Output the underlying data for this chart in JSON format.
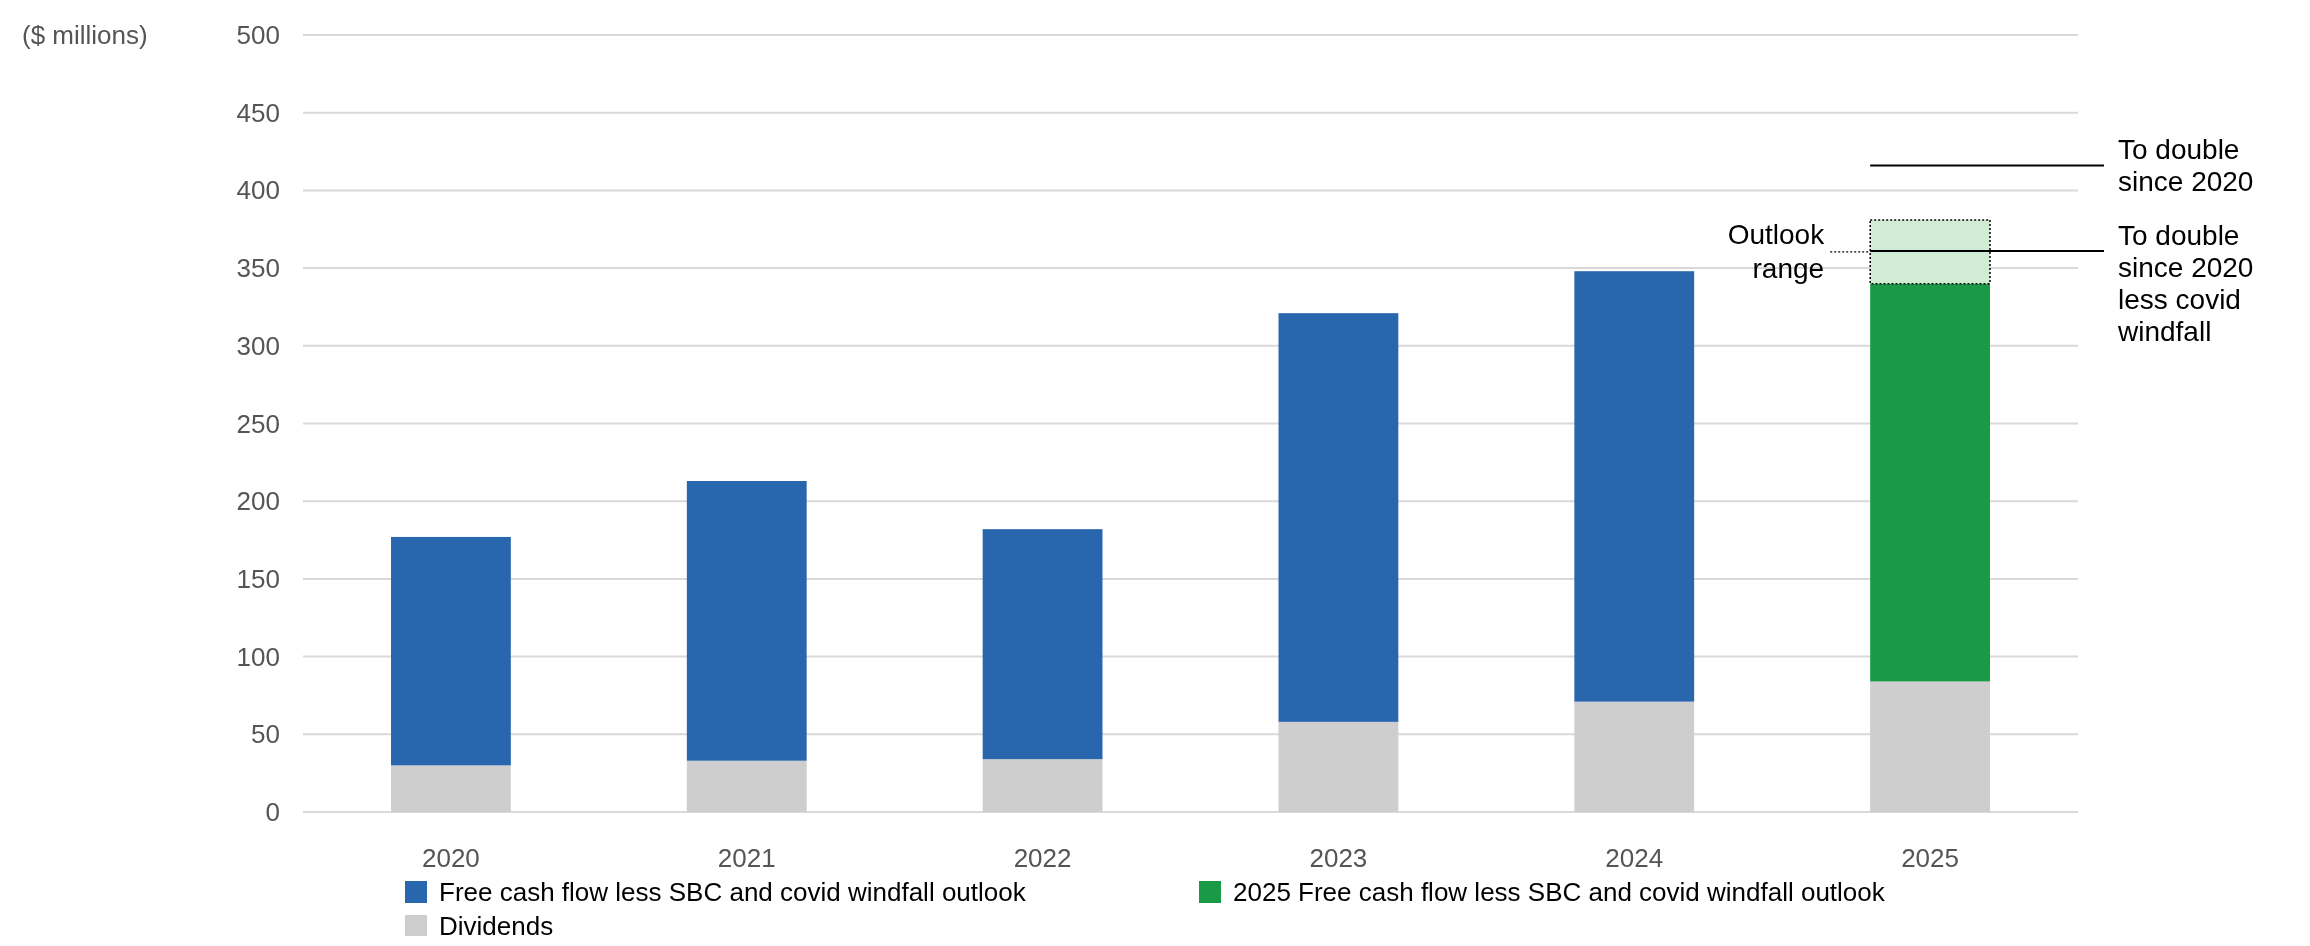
{
  "chart_data": {
    "type": "bar",
    "stacked": true,
    "ylabel": "($ millions)",
    "categories": [
      "2020",
      "2021",
      "2022",
      "2023",
      "2024",
      "2025"
    ],
    "series": [
      {
        "name": "Dividends",
        "color": "#cecece",
        "values": [
          30,
          33,
          34,
          58,
          71,
          84
        ]
      },
      {
        "name": "Free cash flow less SBC and covid windfall outlook",
        "color": "#2867ae",
        "values": [
          147,
          180,
          148,
          263,
          277,
          null
        ]
      },
      {
        "name": "2025 Free cash flow less SBC and covid windfall outlook",
        "color": "#1a9946",
        "values": [
          null,
          null,
          null,
          null,
          null,
          256
        ]
      },
      {
        "color": "#d0ecd4",
        "line_style": "dotted",
        "values": [
          null,
          null,
          null,
          null,
          null,
          41
        ]
      }
    ],
    "ylim": [
      0,
      500
    ],
    "yticks": [
      0,
      50,
      100,
      150,
      200,
      250,
      300,
      350,
      400,
      450,
      500
    ],
    "grid": "y",
    "legend": "bottom",
    "ref_lines": [
      {
        "axis": "y",
        "value": 416,
        "label": "To double since 2020",
        "color": "#000000"
      },
      {
        "axis": "y",
        "value": 361,
        "label": "To double since 2020 less covid windfall",
        "color": "#000000"
      }
    ],
    "annotations": [
      "Outlook range"
    ]
  }
}
